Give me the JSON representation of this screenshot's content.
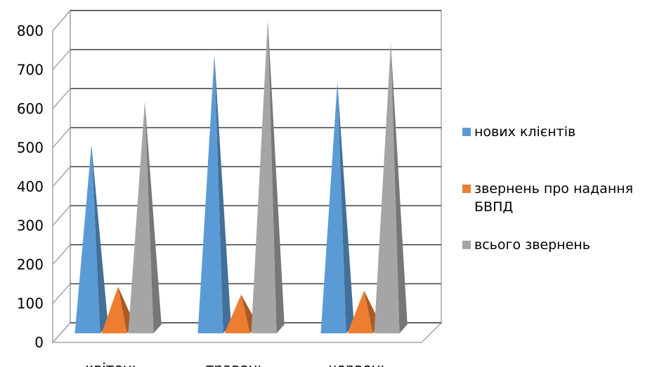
{
  "chart_data": {
    "type": "bar",
    "style": "3d-pyramid",
    "categories": [
      "квітень",
      "травень",
      "червень"
    ],
    "series": [
      {
        "name": "нових клієнтів",
        "values": [
          480,
          710,
          640
        ],
        "color": "#5b9bd5"
      },
      {
        "name": "звернень про надання БВПД",
        "values": [
          115,
          95,
          105
        ],
        "color": "#ed7d31"
      },
      {
        "name": "всього звернень",
        "values": [
          590,
          800,
          740
        ],
        "color": "#a5a5a5"
      }
    ],
    "yticks": [
      0,
      100,
      200,
      300,
      400,
      500,
      600,
      700,
      800
    ],
    "ylim": [
      0,
      800
    ],
    "grid": true,
    "legend_position": "right"
  }
}
